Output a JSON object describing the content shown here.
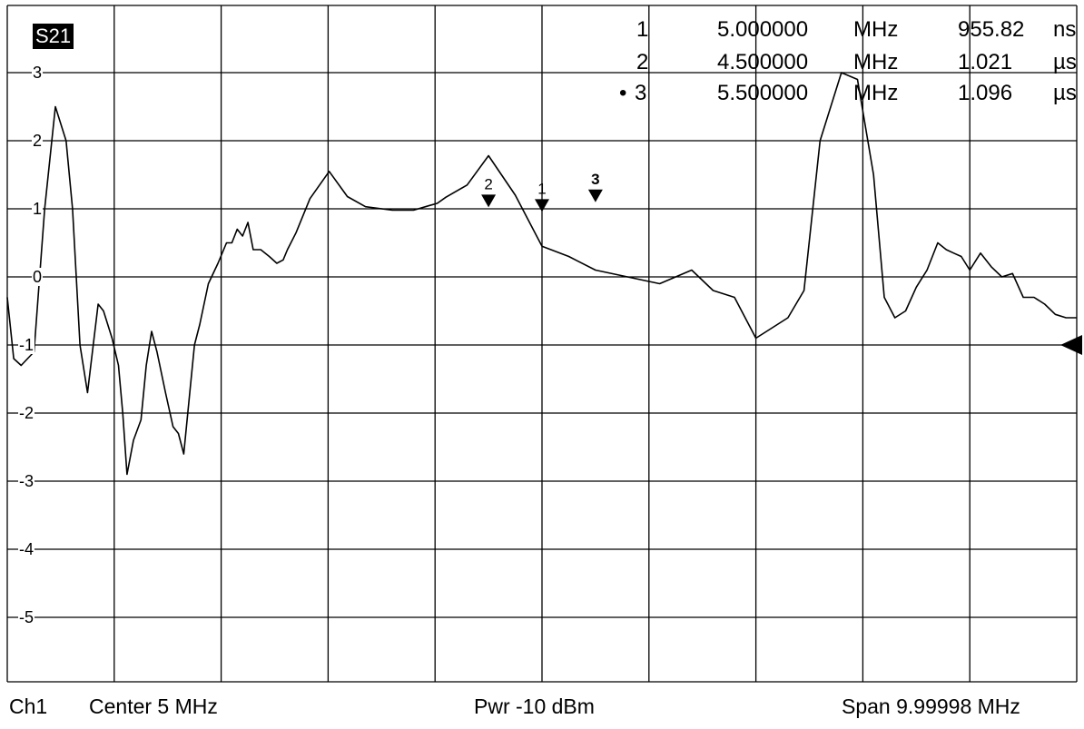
{
  "trace_label": "S21",
  "markers": [
    {
      "num": "1",
      "active": false,
      "freq": "5.000000",
      "freq_unit": "MHz",
      "value": "955.82",
      "value_unit": "ns"
    },
    {
      "num": "2",
      "active": false,
      "freq": "4.500000",
      "freq_unit": "MHz",
      "value": "1.021",
      "value_unit": "µs"
    },
    {
      "num": "3",
      "active": true,
      "freq": "5.500000",
      "freq_unit": "MHz",
      "value": "1.096",
      "value_unit": "µs"
    }
  ],
  "footer": {
    "channel": "Ch1",
    "center": "Center  5 MHz",
    "power": "Pwr  -10 dBm",
    "span": "Span  9.99998 MHz"
  },
  "chart_data": {
    "type": "line",
    "title": "S21",
    "xlabel": "",
    "ylabel": "",
    "xlim": [
      0,
      9.99998
    ],
    "ylim": [
      -6,
      3.5
    ],
    "ytick_labels": [
      "3",
      "2",
      "1",
      "0",
      "-1",
      "-2",
      "-3",
      "-4",
      "-5"
    ],
    "ytick_values": [
      3,
      2,
      1,
      0,
      -1,
      -2,
      -3,
      -4,
      -5
    ],
    "grid": true,
    "reference_level": -1,
    "series": [
      {
        "x": [
          0.0,
          0.06,
          0.13,
          0.25,
          0.35,
          0.45,
          0.55,
          0.61,
          0.68,
          0.75,
          0.85,
          0.9,
          0.98,
          1.04,
          1.08,
          1.12,
          1.18,
          1.25,
          1.3,
          1.35,
          1.4,
          1.48,
          1.55,
          1.6,
          1.65,
          1.75,
          1.8,
          1.88,
          1.97,
          2.05,
          2.1,
          2.15,
          2.2,
          2.25,
          2.3,
          2.37,
          2.45,
          2.52,
          2.58,
          2.62,
          2.7,
          2.83,
          3.01,
          3.18,
          3.35,
          3.6,
          3.8,
          3.95,
          4.02,
          4.1,
          4.3,
          4.5,
          4.75,
          5.0,
          5.25,
          5.5,
          5.8,
          6.1,
          6.4,
          6.6,
          6.8,
          7.0,
          7.1,
          7.3,
          7.45,
          7.6,
          7.8,
          7.95,
          8.1,
          8.2,
          8.3,
          8.4,
          8.5,
          8.6,
          8.7,
          8.78,
          8.85,
          8.92,
          9.0,
          9.1,
          9.2,
          9.3,
          9.4,
          9.5,
          9.6,
          9.7,
          9.8,
          9.9,
          9.99998
        ],
        "y": [
          -0.3,
          -1.2,
          -1.3,
          -1.1,
          1.0,
          2.5,
          2.0,
          1.0,
          -1.0,
          -1.7,
          -0.4,
          -0.5,
          -0.9,
          -1.3,
          -2.0,
          -2.9,
          -2.4,
          -2.1,
          -1.3,
          -0.8,
          -1.1,
          -1.7,
          -2.2,
          -2.3,
          -2.6,
          -1.0,
          -0.7,
          -0.1,
          0.2,
          0.5,
          0.5,
          0.7,
          0.6,
          0.8,
          0.4,
          0.4,
          0.3,
          0.2,
          0.25,
          0.4,
          0.65,
          1.15,
          1.55,
          1.18,
          1.03,
          0.98,
          0.98,
          1.05,
          1.08,
          1.17,
          1.35,
          1.78,
          1.2,
          0.45,
          0.3,
          0.1,
          0.0,
          -0.1,
          0.1,
          -0.2,
          -0.3,
          -0.9,
          -0.8,
          -0.6,
          -0.2,
          2.0,
          3.0,
          2.9,
          1.5,
          -0.3,
          -0.6,
          -0.5,
          -0.15,
          0.1,
          0.5,
          0.4,
          0.35,
          0.3,
          0.1,
          0.35,
          0.15,
          0.0,
          0.05,
          -0.3,
          -0.3,
          -0.4,
          -0.55,
          -0.6,
          -0.6
        ]
      }
    ]
  }
}
